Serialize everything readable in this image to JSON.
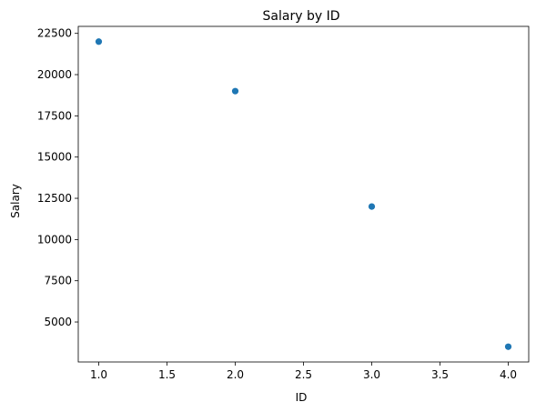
{
  "chart_data": {
    "type": "scatter",
    "title": "Salary by ID",
    "xlabel": "ID",
    "ylabel": "Salary",
    "x": [
      1,
      2,
      3,
      4
    ],
    "y": [
      22000,
      19000,
      12000,
      3500
    ],
    "xlim": [
      0.85,
      4.15
    ],
    "ylim": [
      2575,
      22925
    ],
    "xticks": [
      1.0,
      1.5,
      2.0,
      2.5,
      3.0,
      3.5,
      4.0
    ],
    "xtick_labels": [
      "1.0",
      "1.5",
      "2.0",
      "2.5",
      "3.0",
      "3.5",
      "4.0"
    ],
    "yticks": [
      5000,
      7500,
      10000,
      12500,
      15000,
      17500,
      20000,
      22500
    ],
    "ytick_labels": [
      "5000",
      "7500",
      "10000",
      "12500",
      "15000",
      "17500",
      "20000",
      "22500"
    ],
    "grid": false,
    "marker_color": "#1f77b4"
  }
}
